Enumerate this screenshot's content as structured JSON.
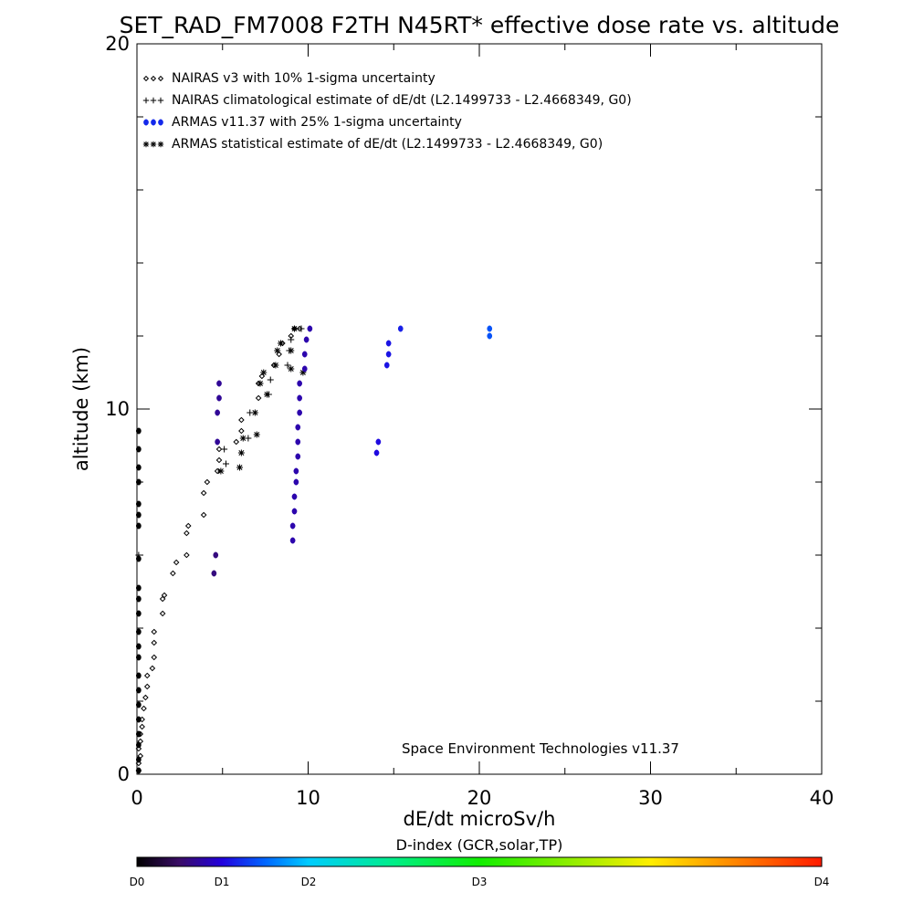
{
  "chart_data": {
    "type": "scatter",
    "title": "SET_RAD_FM7008  F2TH N45RT* effective dose rate vs. altitude",
    "xlabel": "dE/dt microSv/h",
    "ylabel": "altitude (km)",
    "xlim": [
      0,
      40
    ],
    "ylim": [
      0,
      20
    ],
    "x_ticks": [
      "0",
      "10",
      "20",
      "30",
      "40"
    ],
    "y_ticks": [
      "0",
      "10",
      "20"
    ],
    "legend_position": "top-left",
    "credit": "Space Environment Technologies v11.37",
    "series": [
      {
        "name": "NAIRAS v3 with 10% 1-sigma uncertainty",
        "marker": "diamond",
        "color": "#000000",
        "points": [
          [
            0.1,
            0.1
          ],
          [
            0.1,
            0.3
          ],
          [
            0.2,
            0.5
          ],
          [
            0.1,
            0.7
          ],
          [
            0.2,
            0.9
          ],
          [
            0.2,
            1.1
          ],
          [
            0.3,
            1.3
          ],
          [
            0.3,
            1.5
          ],
          [
            0.4,
            1.8
          ],
          [
            0.5,
            2.1
          ],
          [
            0.6,
            2.4
          ],
          [
            0.6,
            2.7
          ],
          [
            0.9,
            2.9
          ],
          [
            1.0,
            3.2
          ],
          [
            1.0,
            3.6
          ],
          [
            1.0,
            3.9
          ],
          [
            1.5,
            4.4
          ],
          [
            1.5,
            4.8
          ],
          [
            1.6,
            4.9
          ],
          [
            2.1,
            5.5
          ],
          [
            2.3,
            5.8
          ],
          [
            2.9,
            6.0
          ],
          [
            2.9,
            6.6
          ],
          [
            3.0,
            6.8
          ],
          [
            3.9,
            7.1
          ],
          [
            3.9,
            7.7
          ],
          [
            4.1,
            8.0
          ],
          [
            4.7,
            8.3
          ],
          [
            4.8,
            8.6
          ],
          [
            4.8,
            8.9
          ],
          [
            5.8,
            9.1
          ],
          [
            6.1,
            9.4
          ],
          [
            6.1,
            9.7
          ],
          [
            7.1,
            10.3
          ],
          [
            7.1,
            10.7
          ],
          [
            7.3,
            10.9
          ],
          [
            8.0,
            11.2
          ],
          [
            8.3,
            11.5
          ],
          [
            8.5,
            11.8
          ],
          [
            9.0,
            12.0
          ],
          [
            9.2,
            12.2
          ],
          [
            9.5,
            12.2
          ]
        ]
      },
      {
        "name": "NAIRAS climatological estimate of dE/dt (L2.1499733 - L2.4668349, G0)",
        "marker": "plus",
        "color": "#000000",
        "points": [
          [
            0.1,
            6.0
          ],
          [
            5.2,
            8.5
          ],
          [
            5.1,
            8.9
          ],
          [
            6.5,
            9.2
          ],
          [
            6.6,
            9.9
          ],
          [
            7.7,
            10.4
          ],
          [
            7.8,
            10.8
          ],
          [
            8.8,
            11.2
          ],
          [
            8.9,
            11.6
          ],
          [
            9.0,
            11.9
          ],
          [
            9.6,
            12.2
          ]
        ]
      },
      {
        "name": "ARMAS v11.37 with 25% 1-sigma uncertainty",
        "marker": "dot",
        "colored_by": "D-index",
        "points": [
          {
            "x": 0.1,
            "y": 0.1,
            "d": 0.0
          },
          {
            "x": 0.1,
            "y": 0.4,
            "d": 0.0
          },
          {
            "x": 0.1,
            "y": 0.8,
            "d": 0.0
          },
          {
            "x": 0.1,
            "y": 1.1,
            "d": 0.0
          },
          {
            "x": 0.1,
            "y": 1.5,
            "d": 0.0
          },
          {
            "x": 0.1,
            "y": 1.9,
            "d": 0.0
          },
          {
            "x": 0.1,
            "y": 2.3,
            "d": 0.0
          },
          {
            "x": 0.1,
            "y": 2.7,
            "d": 0.0
          },
          {
            "x": 0.1,
            "y": 3.2,
            "d": 0.0
          },
          {
            "x": 0.1,
            "y": 3.5,
            "d": 0.0
          },
          {
            "x": 0.1,
            "y": 3.9,
            "d": 0.0
          },
          {
            "x": 0.1,
            "y": 4.4,
            "d": 0.0
          },
          {
            "x": 0.1,
            "y": 4.8,
            "d": 0.0
          },
          {
            "x": 0.1,
            "y": 5.1,
            "d": 0.0
          },
          {
            "x": 0.1,
            "y": 5.9,
            "d": 0.0
          },
          {
            "x": 0.1,
            "y": 6.8,
            "d": 0.0
          },
          {
            "x": 0.1,
            "y": 7.1,
            "d": 0.0
          },
          {
            "x": 0.1,
            "y": 7.4,
            "d": 0.0
          },
          {
            "x": 0.1,
            "y": 8.0,
            "d": 0.0
          },
          {
            "x": 0.1,
            "y": 8.4,
            "d": 0.0
          },
          {
            "x": 0.1,
            "y": 8.9,
            "d": 0.0
          },
          {
            "x": 0.1,
            "y": 9.4,
            "d": 0.0
          },
          {
            "x": 4.5,
            "y": 5.5,
            "d": 0.6
          },
          {
            "x": 4.6,
            "y": 6.0,
            "d": 0.6
          },
          {
            "x": 4.7,
            "y": 9.1,
            "d": 0.7
          },
          {
            "x": 4.7,
            "y": 9.9,
            "d": 0.7
          },
          {
            "x": 4.8,
            "y": 10.3,
            "d": 0.7
          },
          {
            "x": 4.8,
            "y": 10.7,
            "d": 0.7
          },
          {
            "x": 9.1,
            "y": 6.4,
            "d": 0.8
          },
          {
            "x": 9.1,
            "y": 6.8,
            "d": 0.8
          },
          {
            "x": 9.2,
            "y": 7.2,
            "d": 0.8
          },
          {
            "x": 9.2,
            "y": 7.6,
            "d": 0.8
          },
          {
            "x": 9.3,
            "y": 8.0,
            "d": 0.8
          },
          {
            "x": 9.3,
            "y": 8.3,
            "d": 0.8
          },
          {
            "x": 9.4,
            "y": 8.7,
            "d": 0.8
          },
          {
            "x": 9.4,
            "y": 9.1,
            "d": 0.8
          },
          {
            "x": 9.4,
            "y": 9.5,
            "d": 0.8
          },
          {
            "x": 9.5,
            "y": 9.9,
            "d": 0.8
          },
          {
            "x": 9.5,
            "y": 10.3,
            "d": 0.8
          },
          {
            "x": 9.5,
            "y": 10.7,
            "d": 0.8
          },
          {
            "x": 9.8,
            "y": 11.1,
            "d": 0.8
          },
          {
            "x": 9.8,
            "y": 11.5,
            "d": 0.8
          },
          {
            "x": 9.9,
            "y": 11.9,
            "d": 0.8
          },
          {
            "x": 10.1,
            "y": 12.2,
            "d": 0.8
          },
          {
            "x": 14.0,
            "y": 8.8,
            "d": 1.05
          },
          {
            "x": 14.1,
            "y": 9.1,
            "d": 1.05
          },
          {
            "x": 14.6,
            "y": 11.2,
            "d": 1.1
          },
          {
            "x": 14.7,
            "y": 11.5,
            "d": 1.1
          },
          {
            "x": 14.7,
            "y": 11.8,
            "d": 1.1
          },
          {
            "x": 15.4,
            "y": 12.2,
            "d": 1.15
          },
          {
            "x": 20.6,
            "y": 12.0,
            "d": 1.4
          },
          {
            "x": 20.6,
            "y": 12.2,
            "d": 1.4
          }
        ]
      },
      {
        "name": "ARMAS statistical estimate of dE/dt (L2.1499733 - L2.4668349, G0)",
        "marker": "asterisk",
        "color": "#000000",
        "points": [
          [
            4.9,
            8.3
          ],
          [
            6.0,
            8.4
          ],
          [
            6.1,
            8.8
          ],
          [
            6.2,
            9.2
          ],
          [
            7.0,
            9.3
          ],
          [
            6.9,
            9.9
          ],
          [
            7.6,
            10.4
          ],
          [
            7.2,
            10.7
          ],
          [
            7.4,
            11.0
          ],
          [
            8.1,
            11.2
          ],
          [
            8.2,
            11.6
          ],
          [
            8.4,
            11.8
          ],
          [
            9.0,
            11.1
          ],
          [
            9.0,
            11.6
          ],
          [
            9.2,
            12.2
          ],
          [
            9.7,
            11.0
          ]
        ]
      }
    ],
    "colorbar": {
      "title": "D-index (GCR,solar,TP)",
      "labels": [
        {
          "text": "D0",
          "value": 0
        },
        {
          "text": "D1",
          "value": 1
        },
        {
          "text": "D2",
          "value": 2
        },
        {
          "text": "D3",
          "value": 3
        },
        {
          "text": "D4",
          "value": 4
        }
      ],
      "scale": "piecewise",
      "stops": [
        {
          "d": 0.0,
          "color": "#000000"
        },
        {
          "d": 0.5,
          "color": "#3a0c66"
        },
        {
          "d": 1.0,
          "color": "#2200dd"
        },
        {
          "d": 1.5,
          "color": "#0066ff"
        },
        {
          "d": 2.0,
          "color": "#00ccff"
        },
        {
          "d": 2.5,
          "color": "#00ee88"
        },
        {
          "d": 3.0,
          "color": "#11ee00"
        },
        {
          "d": 3.5,
          "color": "#ffee00"
        },
        {
          "d": 4.0,
          "color": "#ff1a00"
        }
      ]
    }
  }
}
